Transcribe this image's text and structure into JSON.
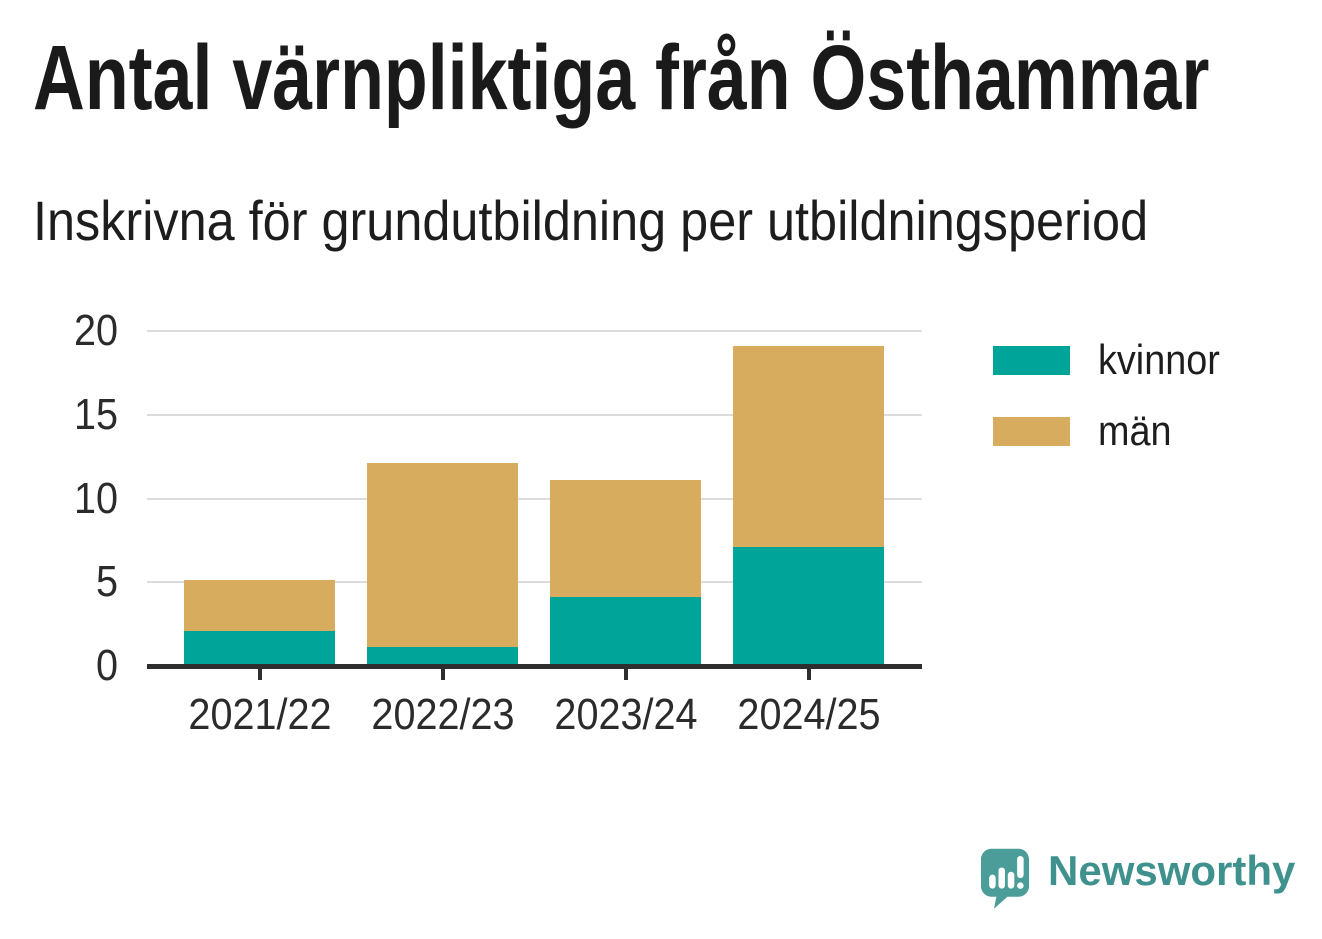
{
  "header": {
    "title": "Antal värnpliktiga från Östhammar",
    "subtitle": "Inskrivna för grundutbildning per utbildningsperiod"
  },
  "chart_data": {
    "type": "bar",
    "stacked": true,
    "title": "Antal värnpliktiga från Östhammar",
    "subtitle": "Inskrivna för grundutbildning per utbildningsperiod",
    "categories": [
      "2021/22",
      "2022/23",
      "2023/24",
      "2024/25"
    ],
    "series": [
      {
        "name": "kvinnor",
        "color": "#00a499",
        "values": [
          2,
          1,
          4,
          7
        ]
      },
      {
        "name": "män",
        "color": "#d8ac5e",
        "values": [
          3,
          11,
          7,
          12
        ]
      }
    ],
    "stack_totals": [
      5,
      12,
      11,
      19
    ],
    "xlabel": "",
    "ylabel": "",
    "yticks": [
      0,
      5,
      10,
      15,
      20
    ],
    "ylim": [
      0,
      20
    ],
    "grid": true,
    "legend_position": "right-top"
  },
  "legend": {
    "items": [
      {
        "label": "kvinnor",
        "color": "#00a499"
      },
      {
        "label": "män",
        "color": "#d8ac5e"
      }
    ]
  },
  "footer": {
    "brand": "Newsworthy",
    "logo_icon": "bar-chart-speech-bubble"
  },
  "colors": {
    "kvinnor": "#00a499",
    "man": "#d8ac5e",
    "gridline": "#dcdcdc",
    "axis_line": "#2e2e2e",
    "axis_text": "#2b2b2b",
    "title_text": "#1a1a1a",
    "brand_text": "#3f918d",
    "logo_bubble": "#4a9d98"
  }
}
